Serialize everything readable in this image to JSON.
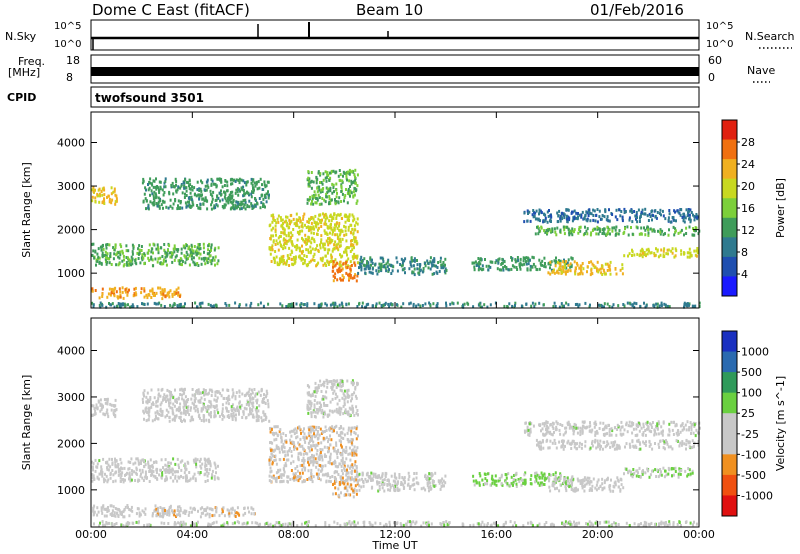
{
  "header": {
    "station": "Dome C East (fitACF)",
    "beam": "Beam 10",
    "date": "01/Feb/2016"
  },
  "strips": {
    "nsky": {
      "left_label": "N.Sky",
      "ticks": [
        "10^5",
        "10^0"
      ],
      "right_ticks": [
        "10^5",
        "10^0"
      ],
      "right_label": "N.Search"
    },
    "freq": {
      "left_label": "Freq.",
      "unit": "[MHz]",
      "ticks": [
        "18",
        "8"
      ],
      "right_ticks": [
        "60",
        "0"
      ],
      "right_label": "Nave"
    },
    "cpid": {
      "left_label": "CPID",
      "value": "twofsound 3501"
    }
  },
  "chart_data": [
    {
      "type": "heatmap",
      "panel": "power",
      "ylabel": "Slant Range [km]",
      "xlabel": "",
      "x_ticks": [
        "00:00",
        "04:00",
        "08:00",
        "12:00",
        "16:00",
        "20:00",
        "00:00"
      ],
      "y_ticks": [
        1000,
        2000,
        3000,
        4000
      ],
      "ylim": [
        200,
        4700
      ],
      "xlim_hours": [
        0,
        24
      ],
      "colorbar": {
        "label": "Power [dB]",
        "ticks": [
          "28",
          "24",
          "20",
          "16",
          "12",
          "8",
          "4"
        ],
        "range": [
          0,
          32
        ],
        "colors": [
          "#1a1aff",
          "#1f4fb0",
          "#2f7a8f",
          "#3f9c5a",
          "#7ccf3a",
          "#c8d820",
          "#f0b020",
          "#f07010",
          "#e02010"
        ]
      },
      "regions": [
        {
          "t0": 0.0,
          "t1": 3.5,
          "r0": 450,
          "r1": 700,
          "value": 24
        },
        {
          "t0": 0.0,
          "t1": 1.0,
          "r0": 2600,
          "r1": 3000,
          "value": 22
        },
        {
          "t0": 0.0,
          "t1": 5.0,
          "r0": 1200,
          "r1": 1700,
          "value": 14
        },
        {
          "t0": 2.0,
          "t1": 7.0,
          "r0": 2500,
          "r1": 3200,
          "value": 12
        },
        {
          "t0": 7.0,
          "t1": 10.5,
          "r0": 1200,
          "r1": 2400,
          "value": 20
        },
        {
          "t0": 9.5,
          "t1": 10.5,
          "r0": 850,
          "r1": 1300,
          "value": 26
        },
        {
          "t0": 8.5,
          "t1": 10.5,
          "r0": 2600,
          "r1": 3400,
          "value": 14
        },
        {
          "t0": 10.5,
          "t1": 14.0,
          "r0": 1000,
          "r1": 1400,
          "value": 10
        },
        {
          "t0": 15.0,
          "t1": 19.0,
          "r0": 1100,
          "r1": 1400,
          "value": 12
        },
        {
          "t0": 17.0,
          "t1": 24.0,
          "r0": 2200,
          "r1": 2500,
          "value": 8
        },
        {
          "t0": 17.5,
          "t1": 24.0,
          "r0": 1900,
          "r1": 2100,
          "value": 14
        },
        {
          "t0": 18.0,
          "t1": 21.0,
          "r0": 1000,
          "r1": 1300,
          "value": 22
        },
        {
          "t0": 21.0,
          "t1": 24.0,
          "r0": 1400,
          "r1": 1600,
          "value": 20
        },
        {
          "t0": 0.0,
          "t1": 24.0,
          "r0": 250,
          "r1": 350,
          "value": 10
        }
      ]
    },
    {
      "type": "heatmap",
      "panel": "velocity",
      "ylabel": "Slant Range [km]",
      "xlabel": "Time UT",
      "x_ticks": [
        "00:00",
        "04:00",
        "08:00",
        "12:00",
        "16:00",
        "20:00",
        "00:00"
      ],
      "y_ticks": [
        1000,
        2000,
        3000,
        4000
      ],
      "ylim": [
        200,
        4700
      ],
      "xlim_hours": [
        0,
        24
      ],
      "colorbar": {
        "label": "Velocity [m s^-1]",
        "ticks": [
          "1000",
          "500",
          "100",
          "25",
          "-25",
          "-100",
          "-500",
          "-1000"
        ],
        "range": [
          -1200,
          1200
        ],
        "colors": [
          "#e01010",
          "#f05010",
          "#f09020",
          "#c8c8c8",
          "#c8c8c8",
          "#6ad040",
          "#2f9a5a",
          "#2a6ab0",
          "#1a30c0"
        ]
      },
      "regions": [
        {
          "t0": 0.0,
          "t1": 3.5,
          "r0": 450,
          "r1": 700,
          "value": -60
        },
        {
          "t0": 2.5,
          "t1": 6.5,
          "r0": 450,
          "r1": 650,
          "value": -300
        },
        {
          "t0": 0.0,
          "t1": 1.0,
          "r0": 2600,
          "r1": 3000,
          "value": -150
        },
        {
          "t0": 0.0,
          "t1": 5.0,
          "r0": 1200,
          "r1": 1700,
          "value": 0
        },
        {
          "t0": 2.0,
          "t1": 7.0,
          "r0": 2500,
          "r1": 3200,
          "value": 0
        },
        {
          "t0": 7.0,
          "t1": 10.5,
          "r0": 1200,
          "r1": 2400,
          "value": -300
        },
        {
          "t0": 9.5,
          "t1": 10.5,
          "r0": 850,
          "r1": 1300,
          "value": -400
        },
        {
          "t0": 8.5,
          "t1": 10.5,
          "r0": 2600,
          "r1": 3400,
          "value": 0
        },
        {
          "t0": 10.5,
          "t1": 14.0,
          "r0": 1000,
          "r1": 1400,
          "value": 0
        },
        {
          "t0": 15.0,
          "t1": 19.0,
          "r0": 1100,
          "r1": 1400,
          "value": 200
        },
        {
          "t0": 17.0,
          "t1": 24.0,
          "r0": 2200,
          "r1": 2500,
          "value": 0
        },
        {
          "t0": 17.5,
          "t1": 24.0,
          "r0": 1900,
          "r1": 2100,
          "value": 0
        },
        {
          "t0": 18.0,
          "t1": 21.0,
          "r0": 1000,
          "r1": 1300,
          "value": -200
        },
        {
          "t0": 21.0,
          "t1": 24.0,
          "r0": 1300,
          "r1": 1500,
          "value": 150
        },
        {
          "t0": 0.0,
          "t1": 24.0,
          "r0": 250,
          "r1": 350,
          "value": 60
        }
      ]
    }
  ]
}
